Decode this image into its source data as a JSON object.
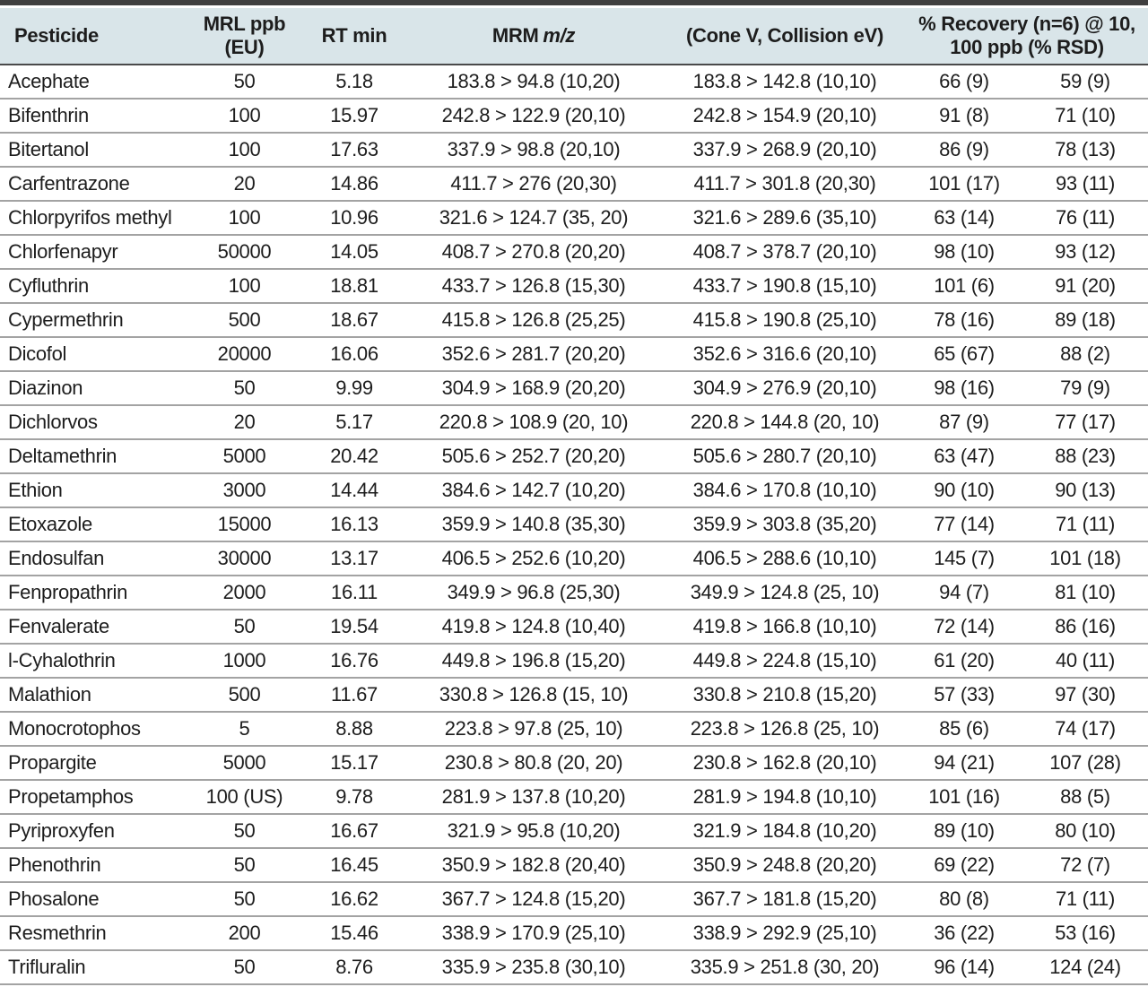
{
  "colors": {
    "top_bar": "#3f3f3f",
    "header_bg": "#d9e5e9",
    "header_underline": "#4a4a4a",
    "row_line": "#a3a3a3",
    "text": "#1d1d1d"
  },
  "table": {
    "header": {
      "pesticide": "Pesticide",
      "mrl_line1": "MRL ppb",
      "mrl_line2": "(EU)",
      "rt": "RT min",
      "mrm_prefix": "MRM",
      "mrm_italic": "m/z",
      "cone": "(Cone V, Collision eV)",
      "recovery_line1": "% Recovery (n=6) @ 10,",
      "recovery_line2": "100 ppb (% RSD)"
    },
    "rows": [
      {
        "pesticide": "Acephate",
        "mrl_ppb_eu": "50",
        "rt_min": "5.18",
        "mrm_1": "183.8 > 94.8 (10,20)",
        "mrm_2": "183.8 > 142.8 (10,10)",
        "recovery_10ppb": "66 (9)",
        "recovery_100ppb": "59 (9)"
      },
      {
        "pesticide": "Bifenthrin",
        "mrl_ppb_eu": "100",
        "rt_min": "15.97",
        "mrm_1": "242.8 > 122.9 (20,10)",
        "mrm_2": "242.8 > 154.9 (20,10)",
        "recovery_10ppb": "91 (8)",
        "recovery_100ppb": "71 (10)"
      },
      {
        "pesticide": "Bitertanol",
        "mrl_ppb_eu": "100",
        "rt_min": "17.63",
        "mrm_1": "337.9 > 98.8 (20,10)",
        "mrm_2": "337.9 > 268.9 (20,10)",
        "recovery_10ppb": "86 (9)",
        "recovery_100ppb": "78 (13)"
      },
      {
        "pesticide": "Carfentrazone",
        "mrl_ppb_eu": "20",
        "rt_min": "14.86",
        "mrm_1": "411.7 > 276 (20,30)",
        "mrm_2": "411.7 > 301.8 (20,30)",
        "recovery_10ppb": "101 (17)",
        "recovery_100ppb": "93 (11)"
      },
      {
        "pesticide": "Chlorpyrifos methyl",
        "mrl_ppb_eu": "100",
        "rt_min": "10.96",
        "mrm_1": "321.6 > 124.7 (35, 20)",
        "mrm_2": "321.6 > 289.6 (35,10)",
        "recovery_10ppb": "63 (14)",
        "recovery_100ppb": "76 (11)"
      },
      {
        "pesticide": "Chlorfenapyr",
        "mrl_ppb_eu": "50000",
        "rt_min": "14.05",
        "mrm_1": "408.7 > 270.8 (20,20)",
        "mrm_2": "408.7 > 378.7 (20,10)",
        "recovery_10ppb": "98 (10)",
        "recovery_100ppb": "93 (12)"
      },
      {
        "pesticide": "Cyfluthrin",
        "mrl_ppb_eu": "100",
        "rt_min": "18.81",
        "mrm_1": "433.7 > 126.8 (15,30)",
        "mrm_2": "433.7 > 190.8 (15,10)",
        "recovery_10ppb": "101 (6)",
        "recovery_100ppb": "91 (20)"
      },
      {
        "pesticide": "Cypermethrin",
        "mrl_ppb_eu": "500",
        "rt_min": "18.67",
        "mrm_1": "415.8 > 126.8 (25,25)",
        "mrm_2": "415.8 > 190.8 (25,10)",
        "recovery_10ppb": "78 (16)",
        "recovery_100ppb": "89 (18)"
      },
      {
        "pesticide": "Dicofol",
        "mrl_ppb_eu": "20000",
        "rt_min": "16.06",
        "mrm_1": "352.6 > 281.7 (20,20)",
        "mrm_2": "352.6 > 316.6 (20,10)",
        "recovery_10ppb": "65 (67)",
        "recovery_100ppb": "88 (2)"
      },
      {
        "pesticide": "Diazinon",
        "mrl_ppb_eu": "50",
        "rt_min": "9.99",
        "mrm_1": "304.9 > 168.9 (20,20)",
        "mrm_2": "304.9 > 276.9 (20,10)",
        "recovery_10ppb": "98 (16)",
        "recovery_100ppb": "79 (9)"
      },
      {
        "pesticide": "Dichlorvos",
        "mrl_ppb_eu": "20",
        "rt_min": "5.17",
        "mrm_1": "220.8 > 108.9 (20, 10)",
        "mrm_2": "220.8 > 144.8 (20, 10)",
        "recovery_10ppb": "87 (9)",
        "recovery_100ppb": "77 (17)"
      },
      {
        "pesticide": "Deltamethrin",
        "mrl_ppb_eu": "5000",
        "rt_min": "20.42",
        "mrm_1": "505.6 > 252.7 (20,20)",
        "mrm_2": "505.6 > 280.7 (20,10)",
        "recovery_10ppb": "63 (47)",
        "recovery_100ppb": "88 (23)"
      },
      {
        "pesticide": "Ethion",
        "mrl_ppb_eu": "3000",
        "rt_min": "14.44",
        "mrm_1": "384.6 > 142.7 (10,20)",
        "mrm_2": "384.6 > 170.8 (10,10)",
        "recovery_10ppb": "90 (10)",
        "recovery_100ppb": "90 (13)"
      },
      {
        "pesticide": "Etoxazole",
        "mrl_ppb_eu": "15000",
        "rt_min": "16.13",
        "mrm_1": "359.9 > 140.8 (35,30)",
        "mrm_2": "359.9 > 303.8 (35,20)",
        "recovery_10ppb": "77 (14)",
        "recovery_100ppb": "71 (11)"
      },
      {
        "pesticide": "Endosulfan",
        "mrl_ppb_eu": "30000",
        "rt_min": "13.17",
        "mrm_1": "406.5 > 252.6 (10,20)",
        "mrm_2": "406.5 > 288.6 (10,10)",
        "recovery_10ppb": "145 (7)",
        "recovery_100ppb": "101 (18)"
      },
      {
        "pesticide": "Fenpropathrin",
        "mrl_ppb_eu": "2000",
        "rt_min": "16.11",
        "mrm_1": "349.9 > 96.8 (25,30)",
        "mrm_2": "349.9 > 124.8 (25, 10)",
        "recovery_10ppb": "94 (7)",
        "recovery_100ppb": "81 (10)"
      },
      {
        "pesticide": "Fenvalerate",
        "mrl_ppb_eu": "50",
        "rt_min": "19.54",
        "mrm_1": "419.8 > 124.8 (10,40)",
        "mrm_2": "419.8 > 166.8 (10,10)",
        "recovery_10ppb": "72 (14)",
        "recovery_100ppb": "86 (16)"
      },
      {
        "pesticide": "l-Cyhalothrin",
        "mrl_ppb_eu": "1000",
        "rt_min": "16.76",
        "mrm_1": "449.8 > 196.8 (15,20)",
        "mrm_2": "449.8 > 224.8 (15,10)",
        "recovery_10ppb": "61 (20)",
        "recovery_100ppb": "40 (11)"
      },
      {
        "pesticide": "Malathion",
        "mrl_ppb_eu": "500",
        "rt_min": "11.67",
        "mrm_1": "330.8 > 126.8 (15, 10)",
        "mrm_2": "330.8 > 210.8 (15,20)",
        "recovery_10ppb": "57 (33)",
        "recovery_100ppb": "97 (30)"
      },
      {
        "pesticide": "Monocrotophos",
        "mrl_ppb_eu": "5",
        "rt_min": "8.88",
        "mrm_1": "223.8 > 97.8 (25, 10)",
        "mrm_2": "223.8 > 126.8 (25, 10)",
        "recovery_10ppb": "85 (6)",
        "recovery_100ppb": "74 (17)"
      },
      {
        "pesticide": "Propargite",
        "mrl_ppb_eu": "5000",
        "rt_min": "15.17",
        "mrm_1": "230.8 > 80.8 (20, 20)",
        "mrm_2": "230.8 > 162.8 (20,10)",
        "recovery_10ppb": "94 (21)",
        "recovery_100ppb": "107 (28)"
      },
      {
        "pesticide": "Propetamphos",
        "mrl_ppb_eu": "100 (US)",
        "rt_min": "9.78",
        "mrm_1": "281.9 > 137.8 (10,20)",
        "mrm_2": "281.9 > 194.8 (10,10)",
        "recovery_10ppb": "101 (16)",
        "recovery_100ppb": "88 (5)"
      },
      {
        "pesticide": "Pyriproxyfen",
        "mrl_ppb_eu": "50",
        "rt_min": "16.67",
        "mrm_1": "321.9 > 95.8 (10,20)",
        "mrm_2": "321.9 > 184.8 (10,20)",
        "recovery_10ppb": "89 (10)",
        "recovery_100ppb": "80 (10)"
      },
      {
        "pesticide": "Phenothrin",
        "mrl_ppb_eu": "50",
        "rt_min": "16.45",
        "mrm_1": "350.9 > 182.8 (20,40)",
        "mrm_2": "350.9 > 248.8 (20,20)",
        "recovery_10ppb": "69 (22)",
        "recovery_100ppb": "72 (7)"
      },
      {
        "pesticide": "Phosalone",
        "mrl_ppb_eu": "50",
        "rt_min": "16.62",
        "mrm_1": "367.7 > 124.8 (15,20)",
        "mrm_2": "367.7 > 181.8 (15,20)",
        "recovery_10ppb": "80 (8)",
        "recovery_100ppb": "71 (11)"
      },
      {
        "pesticide": "Resmethrin",
        "mrl_ppb_eu": "200",
        "rt_min": "15.46",
        "mrm_1": "338.9 > 170.9 (25,10)",
        "mrm_2": "338.9 > 292.9 (25,10)",
        "recovery_10ppb": "36 (22)",
        "recovery_100ppb": "53 (16)"
      },
      {
        "pesticide": "Trifluralin",
        "mrl_ppb_eu": "50",
        "rt_min": "8.76",
        "mrm_1": "335.9 > 235.8 (30,10)",
        "mrm_2": "335.9 > 251.8 (30, 20)",
        "recovery_10ppb": "96 (14)",
        "recovery_100ppb": "124 (24)"
      }
    ]
  }
}
